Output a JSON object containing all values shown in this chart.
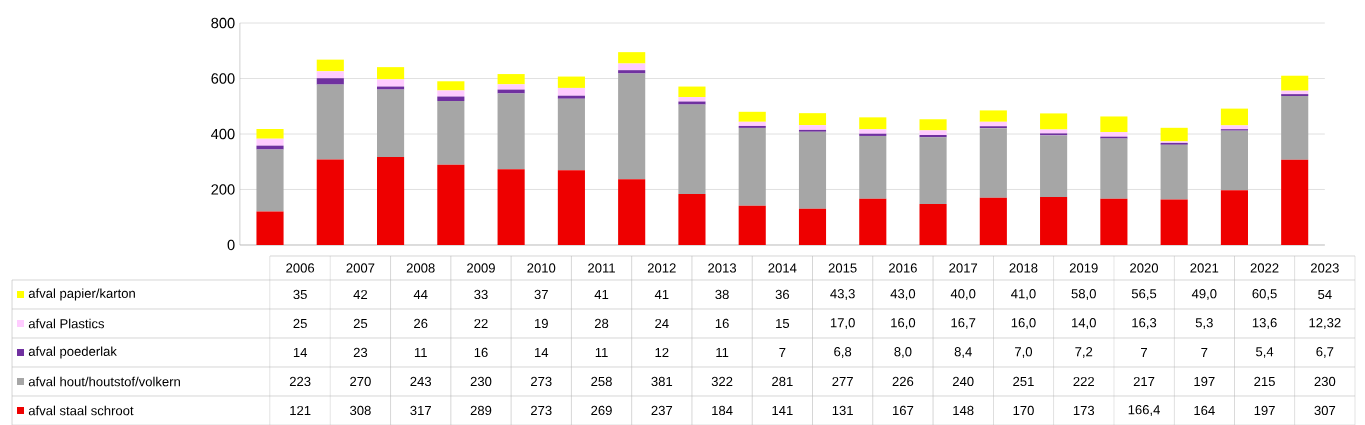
{
  "chart_data": {
    "type": "bar",
    "stacked": true,
    "categories": [
      "2006",
      "2007",
      "2008",
      "2009",
      "2010",
      "2011",
      "2012",
      "2013",
      "2014",
      "2015",
      "2016",
      "2017",
      "2018",
      "2019",
      "2020",
      "2021",
      "2022",
      "2023"
    ],
    "series": [
      {
        "name": "afval staal schroot",
        "color": "#ee0000",
        "values": [
          121,
          308,
          317,
          289,
          273,
          269,
          237,
          184,
          141,
          131,
          167,
          148,
          170,
          173,
          166.4,
          164,
          197,
          307
        ],
        "value_labels": [
          "121",
          "308",
          "317",
          "289",
          "273",
          "269",
          "237",
          "184",
          "141",
          "131",
          "167",
          "148",
          "170",
          "173",
          "166,4",
          "164",
          "197",
          "307"
        ]
      },
      {
        "name": "afval hout/houtstof/volkern",
        "color": "#a6a6a6",
        "values": [
          223,
          270,
          243,
          230,
          273,
          258,
          381,
          322,
          281,
          277,
          226,
          240,
          251,
          222,
          217,
          197,
          215,
          230
        ],
        "value_labels": [
          "223",
          "270",
          "243",
          "230",
          "273",
          "258",
          "381",
          "322",
          "281",
          "277",
          "226",
          "240",
          "251",
          "222",
          "217",
          "197",
          "215",
          "230"
        ]
      },
      {
        "name": "afval poederlak",
        "color": "#7030a0",
        "values": [
          14,
          23,
          11,
          16,
          14,
          11,
          12,
          11,
          7,
          6.8,
          8.0,
          8.4,
          7.0,
          7.2,
          7,
          7,
          5.4,
          6.7
        ],
        "value_labels": [
          "14",
          "23",
          "11",
          "16",
          "14",
          "11",
          "12",
          "11",
          "7",
          "6,8",
          "8,0",
          "8,4",
          "7,0",
          "7,2",
          "7",
          "7",
          "5,4",
          "6,7"
        ]
      },
      {
        "name": "afval Plastics",
        "color": "#ffccff",
        "values": [
          25,
          25,
          26,
          22,
          19,
          28,
          24,
          16,
          15,
          17.0,
          16.0,
          16.7,
          16.0,
          14.0,
          16.3,
          5.3,
          13.6,
          12.32
        ],
        "value_labels": [
          "25",
          "25",
          "26",
          "22",
          "19",
          "28",
          "24",
          "16",
          "15",
          "17,0",
          "16,0",
          "16,7",
          "16,0",
          "14,0",
          "16,3",
          "5,3",
          "13,6",
          "12,32"
        ]
      },
      {
        "name": "afval papier/karton",
        "color": "#ffff00",
        "values": [
          35,
          42,
          44,
          33,
          37,
          41,
          41,
          38,
          36,
          43.3,
          43.0,
          40.0,
          41.0,
          58.0,
          56.5,
          49.0,
          60.5,
          54
        ],
        "value_labels": [
          "35",
          "42",
          "44",
          "33",
          "37",
          "41",
          "41",
          "38",
          "36",
          "43,3",
          "43,0",
          "40,0",
          "41,0",
          "58,0",
          "56,5",
          "49,0",
          "60,5",
          "54"
        ]
      }
    ],
    "ylim": [
      0,
      800
    ],
    "yticks": [
      0,
      200,
      400,
      600,
      800
    ],
    "grid": "y",
    "legend": "bottom"
  }
}
